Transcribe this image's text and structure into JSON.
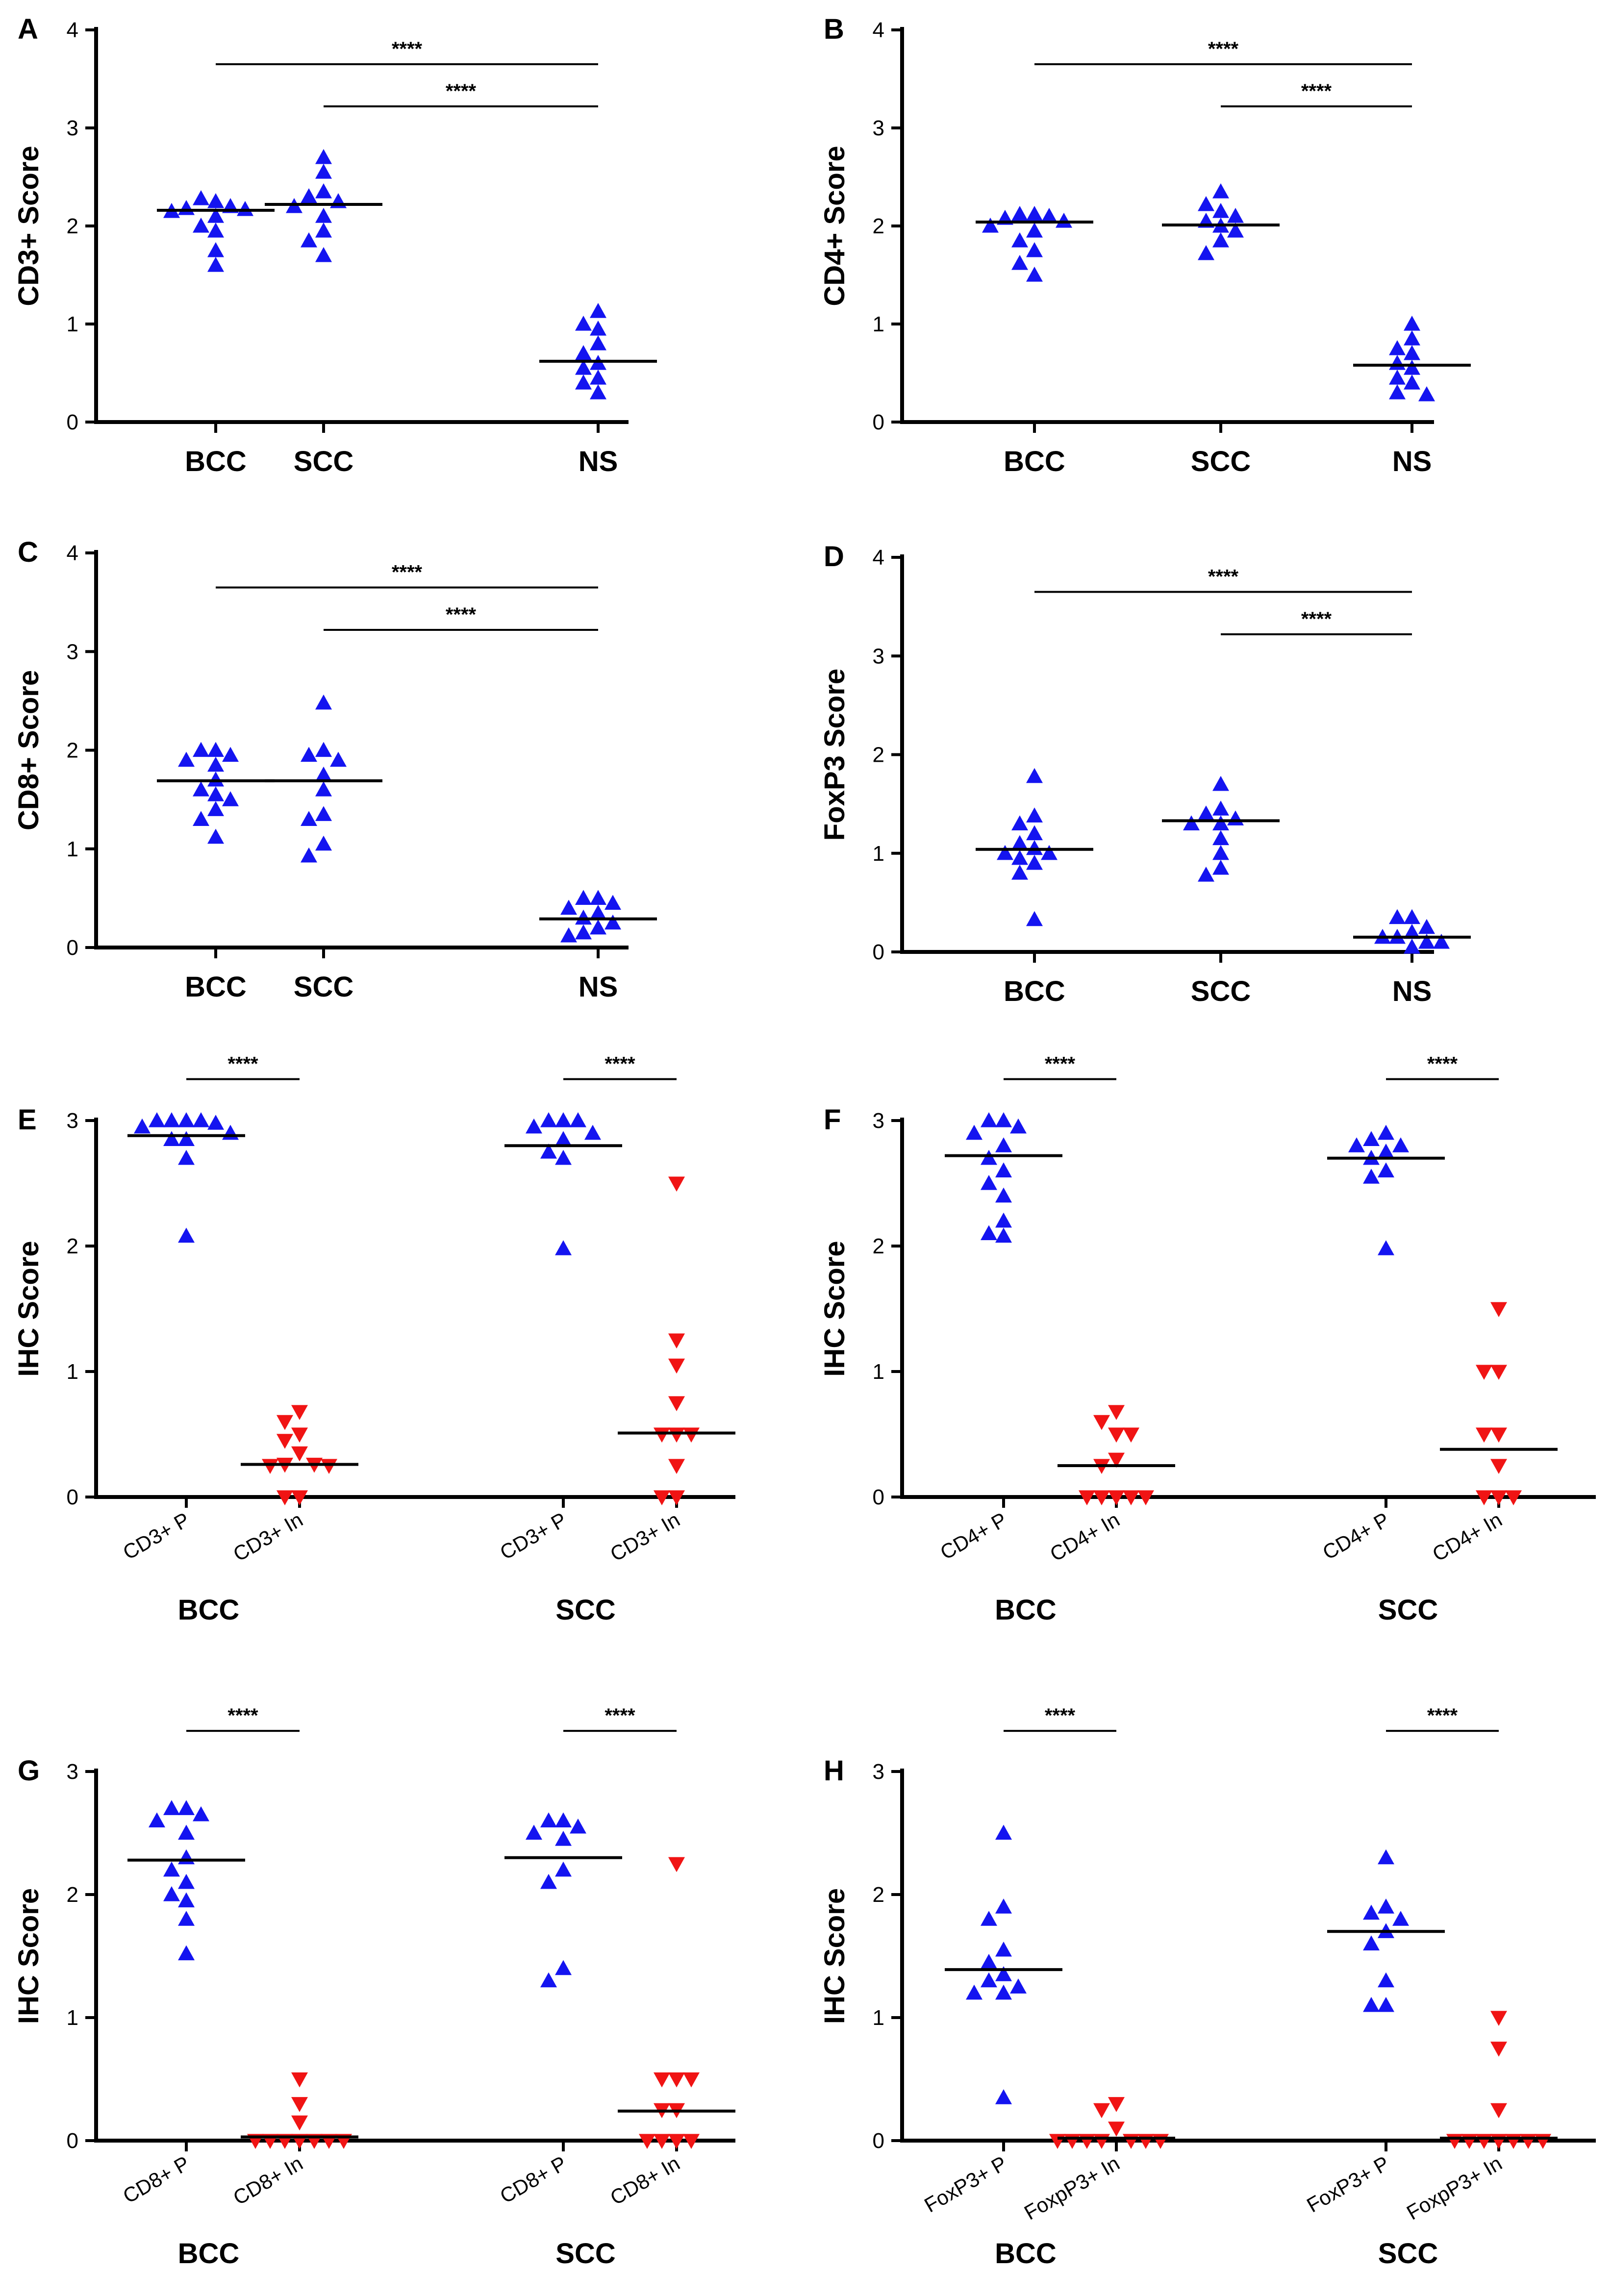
{
  "colors": {
    "blue": "#1414f0",
    "red": "#f01414",
    "axis": "#000000"
  },
  "chart_data": [
    {
      "panel": "A",
      "type": "scatter",
      "ylabel": "CD3+ Score",
      "ylim": [
        0,
        4
      ],
      "yticks": [
        "0",
        "1",
        "2",
        "3",
        "4"
      ],
      "categories": [
        "BCC",
        "SCC",
        "NS"
      ],
      "series": [
        {
          "name": "BCC",
          "marker": "up",
          "color": "blue",
          "median": 2.16,
          "values": [
            2.25,
            2.28,
            2.2,
            2.18,
            2.17,
            2.15,
            2.1,
            2.0,
            1.95,
            1.75,
            1.6
          ]
        },
        {
          "name": "SCC",
          "marker": "up",
          "color": "blue",
          "median": 2.22,
          "values": [
            2.7,
            2.55,
            2.35,
            2.3,
            2.25,
            2.2,
            2.1,
            1.95,
            1.85,
            1.7
          ]
        },
        {
          "name": "NS",
          "marker": "up",
          "color": "blue",
          "median": 0.62,
          "values": [
            1.13,
            1.0,
            0.95,
            0.8,
            0.7,
            0.6,
            0.55,
            0.45,
            0.4,
            0.3
          ]
        }
      ],
      "brackets": [
        {
          "from": 0,
          "to": 2,
          "y": 3.65,
          "label": "****"
        },
        {
          "from": 1,
          "to": 2,
          "y": 3.22,
          "label": "****"
        }
      ]
    },
    {
      "panel": "B",
      "type": "scatter",
      "ylabel": "CD4+ Score",
      "ylim": [
        0,
        4
      ],
      "yticks": [
        "0",
        "1",
        "2",
        "3",
        "4"
      ],
      "categories": [
        "BCC",
        "SCC",
        "NS"
      ],
      "series": [
        {
          "name": "BCC",
          "marker": "up",
          "color": "blue",
          "median": 2.04,
          "values": [
            2.12,
            2.12,
            2.1,
            2.08,
            2.05,
            2.0,
            1.95,
            1.85,
            1.75,
            1.62,
            1.5
          ]
        },
        {
          "name": "SCC",
          "marker": "up",
          "color": "blue",
          "median": 2.01,
          "values": [
            2.35,
            2.22,
            2.15,
            2.1,
            2.05,
            2.0,
            1.95,
            1.85,
            1.72
          ]
        },
        {
          "name": "NS",
          "marker": "up",
          "color": "blue",
          "median": 0.58,
          "values": [
            1.0,
            0.85,
            0.75,
            0.7,
            0.6,
            0.55,
            0.45,
            0.4,
            0.3,
            0.28
          ]
        }
      ],
      "brackets": [
        {
          "from": 0,
          "to": 2,
          "y": 3.65,
          "label": "****"
        },
        {
          "from": 1,
          "to": 2,
          "y": 3.22,
          "label": "****"
        }
      ]
    },
    {
      "panel": "C",
      "type": "scatter",
      "ylabel": "CD8+ Score",
      "ylim": [
        0,
        4
      ],
      "yticks": [
        "0",
        "1",
        "2",
        "3",
        "4"
      ],
      "categories": [
        "BCC",
        "SCC",
        "NS"
      ],
      "series": [
        {
          "name": "BCC",
          "marker": "up",
          "color": "blue",
          "median": 1.69,
          "values": [
            2.0,
            2.0,
            1.95,
            1.9,
            1.85,
            1.7,
            1.6,
            1.55,
            1.5,
            1.4,
            1.3,
            1.12
          ]
        },
        {
          "name": "SCC",
          "marker": "up",
          "color": "blue",
          "median": 1.69,
          "values": [
            2.48,
            2.0,
            1.95,
            1.9,
            1.75,
            1.6,
            1.35,
            1.3,
            1.05,
            0.93
          ]
        },
        {
          "name": "NS",
          "marker": "up",
          "color": "blue",
          "median": 0.29,
          "values": [
            0.5,
            0.5,
            0.45,
            0.4,
            0.35,
            0.3,
            0.25,
            0.2,
            0.15,
            0.12
          ]
        }
      ],
      "brackets": [
        {
          "from": 0,
          "to": 2,
          "y": 3.65,
          "label": "****"
        },
        {
          "from": 1,
          "to": 2,
          "y": 3.22,
          "label": "****"
        }
      ]
    },
    {
      "panel": "D",
      "type": "scatter",
      "ylabel": "FoxP3 Score",
      "ylim": [
        0,
        4
      ],
      "yticks": [
        "0",
        "1",
        "2",
        "3",
        "4"
      ],
      "categories": [
        "BCC",
        "SCC",
        "NS"
      ],
      "series": [
        {
          "name": "BCC",
          "marker": "up",
          "color": "blue",
          "median": 1.04,
          "values": [
            1.78,
            1.38,
            1.3,
            1.2,
            1.1,
            1.05,
            1.0,
            1.0,
            0.95,
            0.9,
            0.8,
            0.33
          ]
        },
        {
          "name": "SCC",
          "marker": "up",
          "color": "blue",
          "median": 1.33,
          "values": [
            1.7,
            1.45,
            1.4,
            1.35,
            1.3,
            1.3,
            1.15,
            1.0,
            0.85,
            0.78
          ]
        },
        {
          "name": "NS",
          "marker": "up",
          "color": "blue",
          "median": 0.15,
          "values": [
            0.35,
            0.35,
            0.25,
            0.2,
            0.15,
            0.15,
            0.1,
            0.1,
            0.05
          ]
        }
      ],
      "brackets": [
        {
          "from": 0,
          "to": 2,
          "y": 3.65,
          "label": "****"
        },
        {
          "from": 1,
          "to": 2,
          "y": 3.22,
          "label": "****"
        }
      ]
    },
    {
      "panel": "E",
      "type": "scatter",
      "ylabel": "IHC Score",
      "ylim": [
        0,
        3
      ],
      "yticks": [
        "0",
        "1",
        "2",
        "3"
      ],
      "categories": [
        "CD3+ P",
        "CD3+ In",
        "CD3+ P",
        "CD3+ In"
      ],
      "groups": [
        "BCC",
        "SCC"
      ],
      "series": [
        {
          "name": "BCC CD3+ P",
          "marker": "up",
          "color": "blue",
          "median": 2.88,
          "values": [
            3.0,
            3.0,
            3.0,
            3.0,
            2.98,
            2.95,
            2.9,
            2.85,
            2.85,
            2.7,
            2.08
          ]
        },
        {
          "name": "BCC CD3+ In",
          "marker": "down",
          "color": "red",
          "median": 0.26,
          "values": [
            0.68,
            0.6,
            0.5,
            0.45,
            0.35,
            0.26,
            0.26,
            0.25,
            0.25,
            0.0,
            0.0
          ]
        },
        {
          "name": "SCC CD3+ P",
          "marker": "up",
          "color": "blue",
          "median": 2.8,
          "values": [
            3.0,
            3.0,
            3.0,
            2.95,
            2.9,
            2.85,
            2.75,
            2.7,
            1.98
          ]
        },
        {
          "name": "SCC CD3+ In",
          "marker": "down",
          "color": "red",
          "median": 0.51,
          "values": [
            2.5,
            1.25,
            1.05,
            0.75,
            0.5,
            0.5,
            0.5,
            0.25,
            0.0,
            0.0
          ]
        }
      ],
      "brackets": [
        {
          "from": 0,
          "to": 1,
          "y": 3.33,
          "label": "****"
        },
        {
          "from": 2,
          "to": 3,
          "y": 3.33,
          "label": "****"
        }
      ]
    },
    {
      "panel": "F",
      "type": "scatter",
      "ylabel": "IHC Score",
      "ylim": [
        0,
        3
      ],
      "yticks": [
        "0",
        "1",
        "2",
        "3"
      ],
      "categories": [
        "CD4+ P",
        "CD4+ In",
        "CD4+ P",
        "CD4+ In"
      ],
      "groups": [
        "BCC",
        "SCC"
      ],
      "series": [
        {
          "name": "BCC CD4+ P",
          "marker": "up",
          "color": "blue",
          "median": 2.72,
          "values": [
            3.0,
            3.0,
            2.95,
            2.9,
            2.8,
            2.7,
            2.6,
            2.5,
            2.4,
            2.2,
            2.1,
            2.08
          ]
        },
        {
          "name": "BCC CD4+ In",
          "marker": "down",
          "color": "red",
          "median": 0.25,
          "values": [
            0.68,
            0.6,
            0.5,
            0.5,
            0.3,
            0.25,
            0.0,
            0.0,
            0.0,
            0.0,
            0.0
          ]
        },
        {
          "name": "SCC CD4+ P",
          "marker": "up",
          "color": "blue",
          "median": 2.7,
          "values": [
            2.9,
            2.85,
            2.8,
            2.8,
            2.75,
            2.7,
            2.6,
            2.55,
            1.98
          ]
        },
        {
          "name": "SCC CD4+ In",
          "marker": "down",
          "color": "red",
          "median": 0.38,
          "values": [
            1.5,
            1.0,
            1.0,
            0.5,
            0.5,
            0.25,
            0.0,
            0.0,
            0.0
          ]
        }
      ],
      "brackets": [
        {
          "from": 0,
          "to": 1,
          "y": 3.33,
          "label": "****"
        },
        {
          "from": 2,
          "to": 3,
          "y": 3.33,
          "label": "****"
        }
      ]
    },
    {
      "panel": "G",
      "type": "scatter",
      "ylabel": "IHC Score",
      "ylim": [
        0,
        3
      ],
      "yticks": [
        "0",
        "1",
        "2",
        "3"
      ],
      "categories": [
        "CD8+ P",
        "CD8+ In",
        "CD8+ P",
        "CD8+ In"
      ],
      "groups": [
        "BCC",
        "SCC"
      ],
      "series": [
        {
          "name": "BCC CD8+ P",
          "marker": "up",
          "color": "blue",
          "median": 2.28,
          "values": [
            2.7,
            2.7,
            2.65,
            2.6,
            2.5,
            2.3,
            2.2,
            2.1,
            2.0,
            1.95,
            1.8,
            1.52
          ]
        },
        {
          "name": "BCC CD8+ In",
          "marker": "down",
          "color": "red",
          "median": 0.03,
          "values": [
            0.5,
            0.3,
            0.15,
            0.0,
            0.0,
            0.0,
            0.0,
            0.0,
            0.0,
            0.0
          ]
        },
        {
          "name": "SCC CD8+ P",
          "marker": "up",
          "color": "blue",
          "median": 2.3,
          "values": [
            2.6,
            2.6,
            2.55,
            2.5,
            2.45,
            2.2,
            2.1,
            1.4,
            1.3
          ]
        },
        {
          "name": "SCC CD8+ In",
          "marker": "down",
          "color": "red",
          "median": 0.24,
          "values": [
            2.25,
            0.5,
            0.5,
            0.5,
            0.25,
            0.25,
            0.0,
            0.0,
            0.0,
            0.0
          ]
        }
      ],
      "brackets": [
        {
          "from": 0,
          "to": 1,
          "y": 3.33,
          "label": "****"
        },
        {
          "from": 2,
          "to": 3,
          "y": 3.33,
          "label": "****"
        }
      ]
    },
    {
      "panel": "H",
      "type": "scatter",
      "ylabel": "IHC Score",
      "ylim": [
        0,
        3
      ],
      "yticks": [
        "0",
        "1",
        "2",
        "3"
      ],
      "categories": [
        "FoxP3+ P",
        "FoxpP3+ In",
        "FoxP3+ P",
        "FoxpP3+ In"
      ],
      "groups": [
        "BCC",
        "SCC"
      ],
      "series": [
        {
          "name": "BCC FoxP3+ P",
          "marker": "up",
          "color": "blue",
          "median": 1.39,
          "values": [
            2.5,
            1.9,
            1.8,
            1.55,
            1.45,
            1.35,
            1.3,
            1.25,
            1.2,
            1.2,
            0.35
          ]
        },
        {
          "name": "BCC FoxpP3+ In",
          "marker": "down",
          "color": "red",
          "median": 0.02,
          "values": [
            0.3,
            0.25,
            0.1,
            0.0,
            0.0,
            0.0,
            0.0,
            0.0,
            0.0,
            0.0
          ]
        },
        {
          "name": "SCC FoxP3+ P",
          "marker": "up",
          "color": "blue",
          "median": 1.7,
          "values": [
            2.3,
            1.9,
            1.85,
            1.8,
            1.7,
            1.6,
            1.3,
            1.1,
            1.1
          ]
        },
        {
          "name": "SCC FoxpP3+ In",
          "marker": "down",
          "color": "red",
          "median": 0.02,
          "values": [
            1.0,
            0.75,
            0.25,
            0.0,
            0.0,
            0.0,
            0.0,
            0.0,
            0.0,
            0.0
          ]
        }
      ],
      "brackets": [
        {
          "from": 0,
          "to": 1,
          "y": 3.33,
          "label": "****"
        },
        {
          "from": 2,
          "to": 3,
          "y": 3.33,
          "label": "****"
        }
      ]
    }
  ]
}
